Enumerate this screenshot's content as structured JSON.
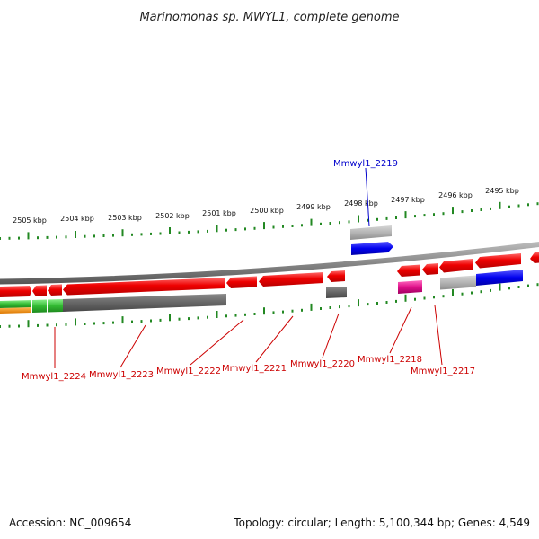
{
  "title": "Marinomonas sp. MWYL1, complete genome",
  "footer": {
    "accession": "Accession: NC_009654",
    "summary": "Topology: circular; Length: 5,100,344 bp; Genes: 4,549"
  },
  "ticks": [
    "2505 kbp",
    "2504 kbp",
    "2503 kbp",
    "2502 kbp",
    "2501 kbp",
    "2500 kbp",
    "2499 kbp",
    "2498 kbp",
    "2497 kbp",
    "2496 kbp",
    "2495 kbp"
  ],
  "gene_labels": {
    "top": {
      "text": "Mmwyl1_2219",
      "color": "#0000cc"
    },
    "bottom": [
      {
        "text": "Mmwyl1_2224",
        "color": "#cc0000"
      },
      {
        "text": "Mmwyl1_2223",
        "color": "#cc0000"
      },
      {
        "text": "Mmwyl1_2222",
        "color": "#cc0000"
      },
      {
        "text": "Mmwyl1_2221",
        "color": "#cc0000"
      },
      {
        "text": "Mmwyl1_2220",
        "color": "#cc0000"
      },
      {
        "text": "Mmwyl1_2218",
        "color": "#cc0000"
      },
      {
        "text": "Mmwyl1_2217",
        "color": "#cc0000"
      }
    ]
  },
  "colors": {
    "cds": "#ee0000",
    "backbone": "#888888",
    "tick": "#228822",
    "gray_feature": "#666666",
    "light_gray_feature": "#b4b4b4",
    "blue_feature": "#0000ee",
    "magenta_feature": "#e0108a",
    "green_feature": "#33bb33",
    "orange_feature": "#ee8800"
  }
}
